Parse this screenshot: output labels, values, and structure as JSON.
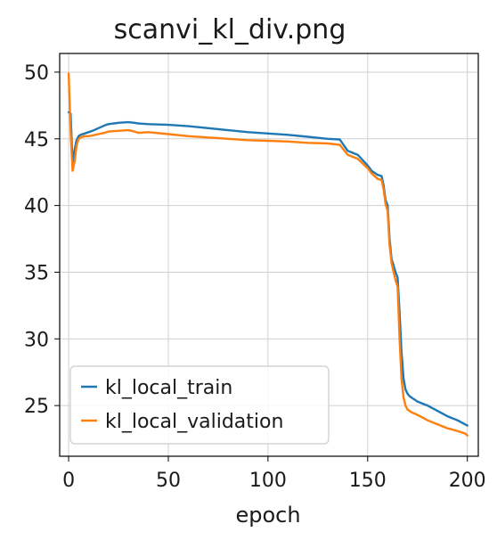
{
  "chart_data": {
    "type": "line",
    "title": "scanvi_kl_div.png",
    "xlabel": "epoch",
    "ylabel": "",
    "xlim": [
      -4.5,
      205.5
    ],
    "ylim": [
      21.2,
      51.4
    ],
    "xticks": [
      0,
      50,
      100,
      150,
      200
    ],
    "yticks": [
      25,
      30,
      35,
      40,
      45,
      50
    ],
    "grid": true,
    "legend_position": "lower-left",
    "series": [
      {
        "name": "kl_local_train",
        "color": "#1f77b4",
        "x": [
          0,
          1,
          2,
          3,
          4,
          5,
          6,
          8,
          10,
          12,
          15,
          18,
          20,
          25,
          30,
          33,
          35,
          40,
          50,
          60,
          70,
          80,
          90,
          100,
          110,
          120,
          130,
          136,
          140,
          145,
          150,
          152,
          155,
          157,
          158,
          159,
          160,
          161,
          162,
          163,
          164,
          165,
          166,
          167,
          168,
          169,
          170,
          171,
          172,
          175,
          180,
          185,
          190,
          195,
          200
        ],
        "y": [
          47.0,
          46.9,
          43.1,
          44.2,
          44.9,
          45.2,
          45.3,
          45.4,
          45.5,
          45.6,
          45.8,
          46.0,
          46.1,
          46.2,
          46.25,
          46.2,
          46.15,
          46.1,
          46.05,
          45.95,
          45.8,
          45.65,
          45.5,
          45.4,
          45.3,
          45.15,
          45.0,
          44.95,
          44.1,
          43.8,
          43.0,
          42.6,
          42.3,
          42.2,
          41.5,
          40.4,
          40.0,
          37.5,
          36.0,
          35.5,
          35.0,
          34.6,
          32.0,
          29.0,
          27.0,
          26.2,
          25.9,
          25.7,
          25.6,
          25.3,
          25.0,
          24.6,
          24.2,
          23.9,
          23.5
        ]
      },
      {
        "name": "kl_local_validation",
        "color": "#ff7f0e",
        "x": [
          0,
          1,
          2,
          3,
          4,
          5,
          6,
          8,
          10,
          12,
          15,
          18,
          20,
          25,
          30,
          33,
          35,
          40,
          50,
          60,
          70,
          80,
          90,
          100,
          110,
          120,
          130,
          136,
          140,
          145,
          150,
          152,
          155,
          157,
          158,
          159,
          160,
          161,
          162,
          163,
          164,
          165,
          166,
          167,
          168,
          169,
          170,
          171,
          172,
          175,
          180,
          185,
          190,
          195,
          199,
          200
        ],
        "y": [
          49.9,
          45.5,
          42.6,
          43.3,
          44.5,
          45.0,
          45.1,
          45.2,
          45.2,
          45.25,
          45.35,
          45.45,
          45.55,
          45.6,
          45.65,
          45.55,
          45.45,
          45.5,
          45.35,
          45.2,
          45.1,
          45.0,
          44.9,
          44.85,
          44.8,
          44.7,
          44.65,
          44.55,
          43.8,
          43.5,
          42.8,
          42.4,
          42.0,
          41.9,
          41.2,
          40.1,
          39.6,
          37.0,
          35.7,
          35.0,
          34.4,
          33.9,
          30.0,
          27.0,
          25.6,
          25.0,
          24.7,
          24.6,
          24.5,
          24.3,
          23.9,
          23.6,
          23.3,
          23.1,
          22.9,
          22.75
        ]
      }
    ]
  }
}
